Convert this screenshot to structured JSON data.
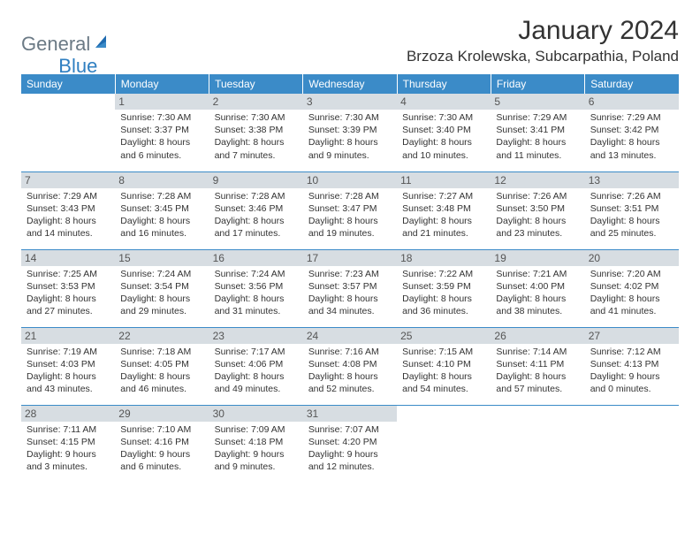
{
  "logo": {
    "text1": "General",
    "text2": "Blue"
  },
  "title": "January 2024",
  "location": "Brzoza Krolewska, Subcarpathia, Poland",
  "colors": {
    "header_bg": "#3b8bc8",
    "header_text": "#ffffff",
    "daynum_bg": "#d7dde2",
    "rule": "#3b8bc8",
    "logo_gray": "#6b7a85",
    "logo_blue": "#2f7fc1"
  },
  "weekdays": [
    "Sunday",
    "Monday",
    "Tuesday",
    "Wednesday",
    "Thursday",
    "Friday",
    "Saturday"
  ],
  "weeks": [
    [
      {
        "n": "",
        "sunrise": "",
        "sunset": "",
        "daylight": ""
      },
      {
        "n": "1",
        "sunrise": "Sunrise: 7:30 AM",
        "sunset": "Sunset: 3:37 PM",
        "daylight": "Daylight: 8 hours and 6 minutes."
      },
      {
        "n": "2",
        "sunrise": "Sunrise: 7:30 AM",
        "sunset": "Sunset: 3:38 PM",
        "daylight": "Daylight: 8 hours and 7 minutes."
      },
      {
        "n": "3",
        "sunrise": "Sunrise: 7:30 AM",
        "sunset": "Sunset: 3:39 PM",
        "daylight": "Daylight: 8 hours and 9 minutes."
      },
      {
        "n": "4",
        "sunrise": "Sunrise: 7:30 AM",
        "sunset": "Sunset: 3:40 PM",
        "daylight": "Daylight: 8 hours and 10 minutes."
      },
      {
        "n": "5",
        "sunrise": "Sunrise: 7:29 AM",
        "sunset": "Sunset: 3:41 PM",
        "daylight": "Daylight: 8 hours and 11 minutes."
      },
      {
        "n": "6",
        "sunrise": "Sunrise: 7:29 AM",
        "sunset": "Sunset: 3:42 PM",
        "daylight": "Daylight: 8 hours and 13 minutes."
      }
    ],
    [
      {
        "n": "7",
        "sunrise": "Sunrise: 7:29 AM",
        "sunset": "Sunset: 3:43 PM",
        "daylight": "Daylight: 8 hours and 14 minutes."
      },
      {
        "n": "8",
        "sunrise": "Sunrise: 7:28 AM",
        "sunset": "Sunset: 3:45 PM",
        "daylight": "Daylight: 8 hours and 16 minutes."
      },
      {
        "n": "9",
        "sunrise": "Sunrise: 7:28 AM",
        "sunset": "Sunset: 3:46 PM",
        "daylight": "Daylight: 8 hours and 17 minutes."
      },
      {
        "n": "10",
        "sunrise": "Sunrise: 7:28 AM",
        "sunset": "Sunset: 3:47 PM",
        "daylight": "Daylight: 8 hours and 19 minutes."
      },
      {
        "n": "11",
        "sunrise": "Sunrise: 7:27 AM",
        "sunset": "Sunset: 3:48 PM",
        "daylight": "Daylight: 8 hours and 21 minutes."
      },
      {
        "n": "12",
        "sunrise": "Sunrise: 7:26 AM",
        "sunset": "Sunset: 3:50 PM",
        "daylight": "Daylight: 8 hours and 23 minutes."
      },
      {
        "n": "13",
        "sunrise": "Sunrise: 7:26 AM",
        "sunset": "Sunset: 3:51 PM",
        "daylight": "Daylight: 8 hours and 25 minutes."
      }
    ],
    [
      {
        "n": "14",
        "sunrise": "Sunrise: 7:25 AM",
        "sunset": "Sunset: 3:53 PM",
        "daylight": "Daylight: 8 hours and 27 minutes."
      },
      {
        "n": "15",
        "sunrise": "Sunrise: 7:24 AM",
        "sunset": "Sunset: 3:54 PM",
        "daylight": "Daylight: 8 hours and 29 minutes."
      },
      {
        "n": "16",
        "sunrise": "Sunrise: 7:24 AM",
        "sunset": "Sunset: 3:56 PM",
        "daylight": "Daylight: 8 hours and 31 minutes."
      },
      {
        "n": "17",
        "sunrise": "Sunrise: 7:23 AM",
        "sunset": "Sunset: 3:57 PM",
        "daylight": "Daylight: 8 hours and 34 minutes."
      },
      {
        "n": "18",
        "sunrise": "Sunrise: 7:22 AM",
        "sunset": "Sunset: 3:59 PM",
        "daylight": "Daylight: 8 hours and 36 minutes."
      },
      {
        "n": "19",
        "sunrise": "Sunrise: 7:21 AM",
        "sunset": "Sunset: 4:00 PM",
        "daylight": "Daylight: 8 hours and 38 minutes."
      },
      {
        "n": "20",
        "sunrise": "Sunrise: 7:20 AM",
        "sunset": "Sunset: 4:02 PM",
        "daylight": "Daylight: 8 hours and 41 minutes."
      }
    ],
    [
      {
        "n": "21",
        "sunrise": "Sunrise: 7:19 AM",
        "sunset": "Sunset: 4:03 PM",
        "daylight": "Daylight: 8 hours and 43 minutes."
      },
      {
        "n": "22",
        "sunrise": "Sunrise: 7:18 AM",
        "sunset": "Sunset: 4:05 PM",
        "daylight": "Daylight: 8 hours and 46 minutes."
      },
      {
        "n": "23",
        "sunrise": "Sunrise: 7:17 AM",
        "sunset": "Sunset: 4:06 PM",
        "daylight": "Daylight: 8 hours and 49 minutes."
      },
      {
        "n": "24",
        "sunrise": "Sunrise: 7:16 AM",
        "sunset": "Sunset: 4:08 PM",
        "daylight": "Daylight: 8 hours and 52 minutes."
      },
      {
        "n": "25",
        "sunrise": "Sunrise: 7:15 AM",
        "sunset": "Sunset: 4:10 PM",
        "daylight": "Daylight: 8 hours and 54 minutes."
      },
      {
        "n": "26",
        "sunrise": "Sunrise: 7:14 AM",
        "sunset": "Sunset: 4:11 PM",
        "daylight": "Daylight: 8 hours and 57 minutes."
      },
      {
        "n": "27",
        "sunrise": "Sunrise: 7:12 AM",
        "sunset": "Sunset: 4:13 PM",
        "daylight": "Daylight: 9 hours and 0 minutes."
      }
    ],
    [
      {
        "n": "28",
        "sunrise": "Sunrise: 7:11 AM",
        "sunset": "Sunset: 4:15 PM",
        "daylight": "Daylight: 9 hours and 3 minutes."
      },
      {
        "n": "29",
        "sunrise": "Sunrise: 7:10 AM",
        "sunset": "Sunset: 4:16 PM",
        "daylight": "Daylight: 9 hours and 6 minutes."
      },
      {
        "n": "30",
        "sunrise": "Sunrise: 7:09 AM",
        "sunset": "Sunset: 4:18 PM",
        "daylight": "Daylight: 9 hours and 9 minutes."
      },
      {
        "n": "31",
        "sunrise": "Sunrise: 7:07 AM",
        "sunset": "Sunset: 4:20 PM",
        "daylight": "Daylight: 9 hours and 12 minutes."
      },
      {
        "n": "",
        "sunrise": "",
        "sunset": "",
        "daylight": ""
      },
      {
        "n": "",
        "sunrise": "",
        "sunset": "",
        "daylight": ""
      },
      {
        "n": "",
        "sunrise": "",
        "sunset": "",
        "daylight": ""
      }
    ]
  ]
}
